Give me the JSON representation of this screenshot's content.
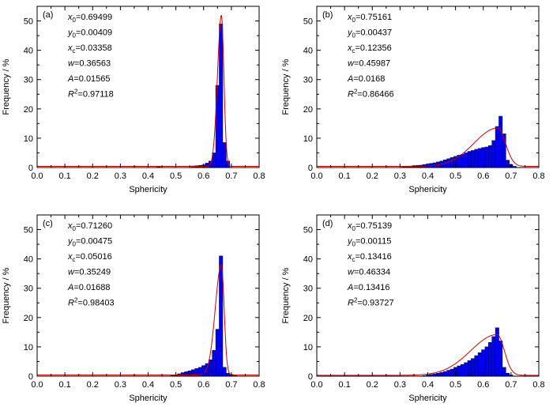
{
  "colors": {
    "bar_fill": "#0000ee",
    "bar_stroke": "#00007a",
    "fit_line": "#cc0000",
    "baseline": "#cc0000"
  },
  "chart_data": [
    {
      "type": "bar",
      "panel_label": "(a)",
      "xlabel": "Sphericity",
      "ylabel": "Frequency / %",
      "xlim": [
        0.0,
        0.8
      ],
      "ylim": [
        0,
        55
      ],
      "xticks": [
        "0.0",
        "0.1",
        "0.2",
        "0.3",
        "0.4",
        "0.5",
        "0.6",
        "0.7",
        "0.8"
      ],
      "yticks": [
        "0",
        "10",
        "20",
        "30",
        "40",
        "50"
      ],
      "grid": false,
      "bin_width": 0.0125,
      "bins": [
        {
          "x": 0.4375,
          "y": 0.2
        },
        {
          "x": 0.5625,
          "y": 0.5
        },
        {
          "x": 0.575,
          "y": 0.6
        },
        {
          "x": 0.5875,
          "y": 0.7
        },
        {
          "x": 0.6,
          "y": 0.9
        },
        {
          "x": 0.6125,
          "y": 1.5
        },
        {
          "x": 0.625,
          "y": 2.2
        },
        {
          "x": 0.6375,
          "y": 5.0
        },
        {
          "x": 0.65,
          "y": 28.0
        },
        {
          "x": 0.6625,
          "y": 49.0
        },
        {
          "x": 0.675,
          "y": 8.5
        },
        {
          "x": 0.6875,
          "y": 2.2
        }
      ],
      "fit": {
        "x0": 0.69499,
        "y0": 0.00409,
        "xc": 0.03358,
        "w": 0.36563,
        "A": 0.01565,
        "peak_x": 0.664,
        "peak_y": 52,
        "left_w": 0.014,
        "right_w": 0.009,
        "base_y": 0.4
      },
      "params": [
        {
          "sym": "x",
          "sub": "0",
          "sup": "",
          "text": "=0.69499"
        },
        {
          "sym": "y",
          "sub": "0",
          "sup": "",
          "text": "=0.00409"
        },
        {
          "sym": "x",
          "sub": "c",
          "sup": "",
          "text": "=0.03358"
        },
        {
          "sym": "w",
          "sub": "",
          "sup": "",
          "text": "=0.36563"
        },
        {
          "sym": "A",
          "sub": "",
          "sup": "",
          "text": "=0.01565"
        },
        {
          "sym": "R",
          "sub": "",
          "sup": "2",
          "text": "=0.97118"
        }
      ]
    },
    {
      "type": "bar",
      "panel_label": "(b)",
      "xlabel": "Sphericity",
      "ylabel": "Frequency / %",
      "xlim": [
        0.0,
        0.8
      ],
      "ylim": [
        0,
        55
      ],
      "xticks": [
        "0.0",
        "0.1",
        "0.2",
        "0.3",
        "0.4",
        "0.5",
        "0.6",
        "0.7",
        "0.8"
      ],
      "yticks": [
        "0",
        "10",
        "20",
        "30",
        "40",
        "50"
      ],
      "grid": false,
      "bin_width": 0.0125,
      "bins": [
        {
          "x": 0.3125,
          "y": 0.3
        },
        {
          "x": 0.325,
          "y": 0.4
        },
        {
          "x": 0.3375,
          "y": 0.5
        },
        {
          "x": 0.35,
          "y": 0.6
        },
        {
          "x": 0.3625,
          "y": 0.7
        },
        {
          "x": 0.375,
          "y": 0.8
        },
        {
          "x": 0.3875,
          "y": 1.0
        },
        {
          "x": 0.4,
          "y": 1.2
        },
        {
          "x": 0.4125,
          "y": 1.4
        },
        {
          "x": 0.425,
          "y": 1.6
        },
        {
          "x": 0.4375,
          "y": 1.9
        },
        {
          "x": 0.45,
          "y": 2.2
        },
        {
          "x": 0.4625,
          "y": 2.6
        },
        {
          "x": 0.475,
          "y": 3.0
        },
        {
          "x": 0.4875,
          "y": 3.4
        },
        {
          "x": 0.5,
          "y": 3.8
        },
        {
          "x": 0.5125,
          "y": 4.2
        },
        {
          "x": 0.525,
          "y": 4.5
        },
        {
          "x": 0.5375,
          "y": 5.0
        },
        {
          "x": 0.55,
          "y": 5.5
        },
        {
          "x": 0.5625,
          "y": 5.8
        },
        {
          "x": 0.575,
          "y": 6.2
        },
        {
          "x": 0.5875,
          "y": 6.5
        },
        {
          "x": 0.6,
          "y": 6.8
        },
        {
          "x": 0.6125,
          "y": 7.0
        },
        {
          "x": 0.625,
          "y": 7.5
        },
        {
          "x": 0.6375,
          "y": 9.2
        },
        {
          "x": 0.65,
          "y": 14.0
        },
        {
          "x": 0.6625,
          "y": 17.5
        },
        {
          "x": 0.675,
          "y": 11.5
        },
        {
          "x": 0.6875,
          "y": 2.5
        },
        {
          "x": 0.7,
          "y": 1.0
        },
        {
          "x": 0.7125,
          "y": 0.4
        }
      ],
      "fit": {
        "x0": 0.75161,
        "y0": 0.00437,
        "xc": 0.12356,
        "w": 0.45987,
        "A": 0.0168,
        "peak_x": 0.652,
        "peak_y": 13.5,
        "left_w": 0.085,
        "right_w": 0.028,
        "base_y": 0.4
      },
      "params": [
        {
          "sym": "x",
          "sub": "0",
          "sup": "",
          "text": "=0.75161"
        },
        {
          "sym": "y",
          "sub": "0",
          "sup": "",
          "text": "=0.00437"
        },
        {
          "sym": "x",
          "sub": "c",
          "sup": "",
          "text": "=0.12356"
        },
        {
          "sym": "w",
          "sub": "",
          "sup": "",
          "text": "=0.45987"
        },
        {
          "sym": "A",
          "sub": "",
          "sup": "",
          "text": "=0.0168"
        },
        {
          "sym": "R",
          "sub": "",
          "sup": "2",
          "text": "=0.86466"
        }
      ]
    },
    {
      "type": "bar",
      "panel_label": "(c)",
      "xlabel": "Sphericity",
      "ylabel": "Frequency / %",
      "xlim": [
        0.0,
        0.8
      ],
      "ylim": [
        0,
        55
      ],
      "xticks": [
        "0.0",
        "0.1",
        "0.2",
        "0.3",
        "0.4",
        "0.5",
        "0.6",
        "0.7",
        "0.8"
      ],
      "yticks": [
        "0",
        "10",
        "20",
        "30",
        "40",
        "50"
      ],
      "grid": false,
      "bin_width": 0.0125,
      "bins": [
        {
          "x": 0.4875,
          "y": 0.3
        },
        {
          "x": 0.5,
          "y": 0.5
        },
        {
          "x": 0.5125,
          "y": 0.8
        },
        {
          "x": 0.525,
          "y": 1.2
        },
        {
          "x": 0.5375,
          "y": 1.5
        },
        {
          "x": 0.55,
          "y": 1.8
        },
        {
          "x": 0.5625,
          "y": 2.2
        },
        {
          "x": 0.575,
          "y": 2.6
        },
        {
          "x": 0.5875,
          "y": 3.0
        },
        {
          "x": 0.6,
          "y": 3.6
        },
        {
          "x": 0.6125,
          "y": 4.3
        },
        {
          "x": 0.625,
          "y": 5.6
        },
        {
          "x": 0.6375,
          "y": 8.8
        },
        {
          "x": 0.65,
          "y": 16.0
        },
        {
          "x": 0.6625,
          "y": 41.0
        },
        {
          "x": 0.675,
          "y": 3.0
        },
        {
          "x": 0.6875,
          "y": 1.0
        },
        {
          "x": 0.7,
          "y": 0.6
        },
        {
          "x": 0.7125,
          "y": 0.3
        }
      ],
      "fit": {
        "x0": 0.7126,
        "y0": 0.00475,
        "xc": 0.05016,
        "w": 0.35249,
        "A": 0.01688,
        "peak_x": 0.664,
        "peak_y": 38,
        "left_w": 0.022,
        "right_w": 0.01,
        "base_y": 0.4
      },
      "params": [
        {
          "sym": "x",
          "sub": "0",
          "sup": "",
          "text": "=0.71260"
        },
        {
          "sym": "y",
          "sub": "0",
          "sup": "",
          "text": "=0.00475"
        },
        {
          "sym": "x",
          "sub": "c",
          "sup": "",
          "text": "=0.05016"
        },
        {
          "sym": "w",
          "sub": "",
          "sup": "",
          "text": "=0.35249"
        },
        {
          "sym": "A",
          "sub": "",
          "sup": "",
          "text": "=0.01688"
        },
        {
          "sym": "R",
          "sub": "",
          "sup": "2",
          "text": "=0.98403"
        }
      ]
    },
    {
      "type": "bar",
      "panel_label": "(d)",
      "xlabel": "Sphericity",
      "ylabel": "Frequency / %",
      "xlim": [
        0.0,
        0.8
      ],
      "ylim": [
        0,
        55
      ],
      "xticks": [
        "0.0",
        "0.1",
        "0.2",
        "0.3",
        "0.4",
        "0.5",
        "0.6",
        "0.7",
        "0.8"
      ],
      "yticks": [
        "0",
        "10",
        "20",
        "30",
        "40",
        "50"
      ],
      "grid": false,
      "bin_width": 0.0125,
      "bins": [
        {
          "x": 0.3875,
          "y": 0.2
        },
        {
          "x": 0.4,
          "y": 0.4
        },
        {
          "x": 0.4125,
          "y": 0.6
        },
        {
          "x": 0.425,
          "y": 0.8
        },
        {
          "x": 0.4375,
          "y": 1.0
        },
        {
          "x": 0.45,
          "y": 1.3
        },
        {
          "x": 0.4625,
          "y": 1.6
        },
        {
          "x": 0.475,
          "y": 2.0
        },
        {
          "x": 0.4875,
          "y": 2.4
        },
        {
          "x": 0.5,
          "y": 3.0
        },
        {
          "x": 0.5125,
          "y": 3.5
        },
        {
          "x": 0.525,
          "y": 4.0
        },
        {
          "x": 0.5375,
          "y": 4.6
        },
        {
          "x": 0.55,
          "y": 5.3
        },
        {
          "x": 0.5625,
          "y": 6.0
        },
        {
          "x": 0.575,
          "y": 7.0
        },
        {
          "x": 0.5875,
          "y": 8.0
        },
        {
          "x": 0.6,
          "y": 9.0
        },
        {
          "x": 0.6125,
          "y": 10.0
        },
        {
          "x": 0.625,
          "y": 11.5
        },
        {
          "x": 0.6375,
          "y": 13.5
        },
        {
          "x": 0.65,
          "y": 16.5
        },
        {
          "x": 0.6625,
          "y": 12.0
        },
        {
          "x": 0.675,
          "y": 3.0
        },
        {
          "x": 0.6875,
          "y": 1.0
        },
        {
          "x": 0.7,
          "y": 0.4
        }
      ],
      "fit": {
        "x0": 0.75139,
        "y0": 0.00115,
        "xc": 0.13416,
        "w": 0.46334,
        "A": 0.13416,
        "peak_x": 0.65,
        "peak_y": 14.2,
        "left_w": 0.095,
        "right_w": 0.026,
        "base_y": 0.3
      },
      "params": [
        {
          "sym": "x",
          "sub": "0",
          "sup": "",
          "text": "=0.75139"
        },
        {
          "sym": "y",
          "sub": "0",
          "sup": "",
          "text": "=0.00115"
        },
        {
          "sym": "x",
          "sub": "c",
          "sup": "",
          "text": "=0.13416"
        },
        {
          "sym": "w",
          "sub": "",
          "sup": "",
          "text": "=0.46334"
        },
        {
          "sym": "A",
          "sub": "",
          "sup": "",
          "text": "=0.13416"
        },
        {
          "sym": "R",
          "sub": "",
          "sup": "2",
          "text": "=0.93727"
        }
      ]
    }
  ]
}
